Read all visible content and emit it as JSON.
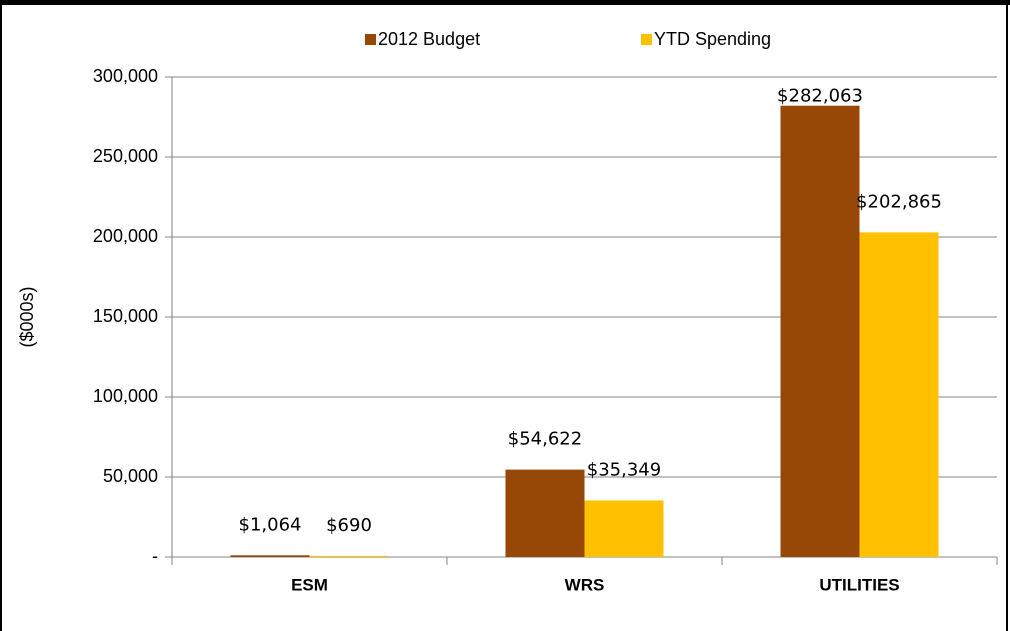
{
  "chart_data": {
    "type": "bar",
    "categories": [
      "ESM",
      "WRS",
      "UTILITIES"
    ],
    "series": [
      {
        "name": "2012 Budget",
        "color": "#974706",
        "values": [
          1064,
          54622,
          282063
        ],
        "value_labels": [
          "$1,064",
          "$54,622",
          "$282,063"
        ]
      },
      {
        "name": "YTD Spending",
        "color": "#ffc000",
        "values": [
          690,
          35349,
          202865
        ],
        "value_labels": [
          "$690",
          "$35,349",
          "$202,865"
        ]
      }
    ],
    "ylabel": "($000s)",
    "ylim": [
      0,
      300000
    ],
    "yticks": [
      {
        "value": 0,
        "label": "-"
      },
      {
        "value": 50000,
        "label": "50,000"
      },
      {
        "value": 100000,
        "label": "100,000"
      },
      {
        "value": 150000,
        "label": "150,000"
      },
      {
        "value": 200000,
        "label": "200,000"
      },
      {
        "value": 250000,
        "label": "250,000"
      },
      {
        "value": 300000,
        "label": "300,000"
      }
    ],
    "grid": true,
    "legend": "top"
  }
}
